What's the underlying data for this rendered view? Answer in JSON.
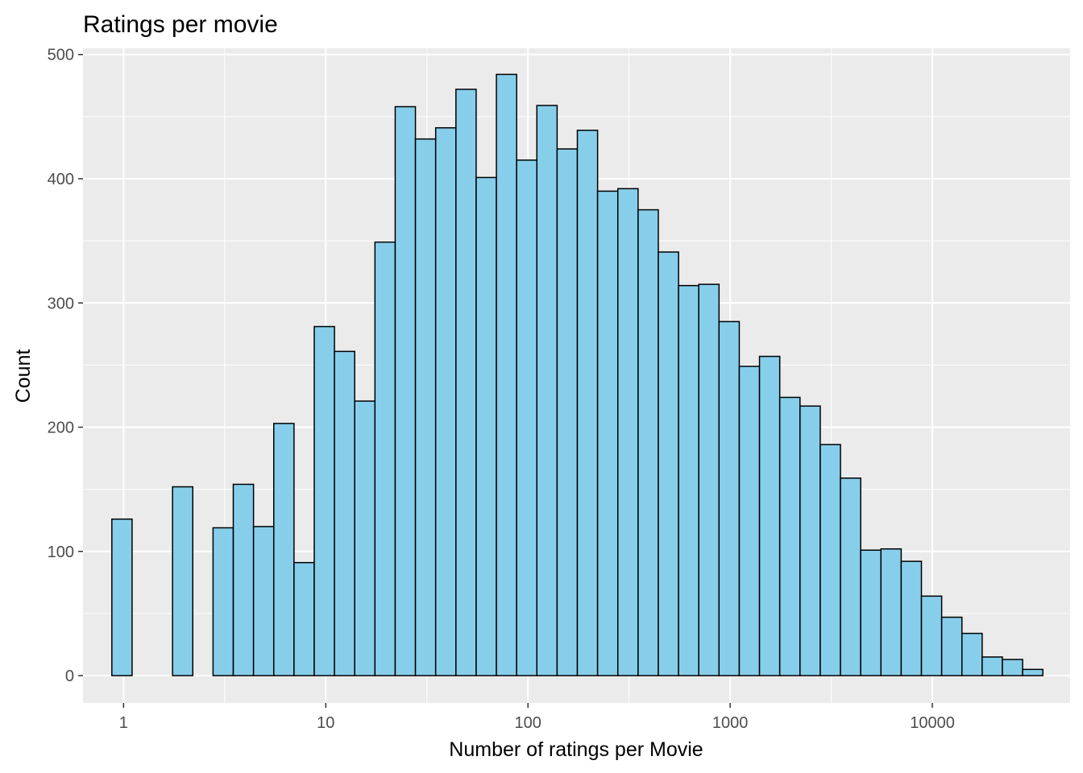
{
  "chart_data": {
    "type": "bar",
    "title": "Ratings per movie",
    "xlabel": "Number of ratings per Movie",
    "ylabel": "Count",
    "x_scale": "log10",
    "x_ticks": [
      1,
      10,
      100,
      1000,
      10000
    ],
    "x_tick_labels": [
      "1",
      "10",
      "100",
      "1000",
      "10000"
    ],
    "y_ticks": [
      0,
      100,
      200,
      300,
      400,
      500
    ],
    "y_tick_labels": [
      "0",
      "100",
      "200",
      "300",
      "400",
      "500"
    ],
    "ylim": [
      -22,
      505
    ],
    "xlim": [
      0.63,
      48000
    ],
    "bin_count": 46,
    "bin_range": [
      0.875,
      35200
    ],
    "values": [
      126,
      0,
      0,
      152,
      0,
      119,
      154,
      120,
      203,
      91,
      281,
      261,
      221,
      349,
      458,
      432,
      441,
      472,
      401,
      484,
      415,
      459,
      424,
      439,
      390,
      392,
      375,
      341,
      314,
      315,
      285,
      249,
      257,
      224,
      217,
      186,
      159,
      101,
      102,
      92,
      64,
      47,
      34,
      15,
      13,
      5
    ],
    "grid": true,
    "colors": {
      "bar_fill": "#87ceeb",
      "bar_outline": "#000000",
      "panel": "#ebebeb",
      "grid": "#ffffff"
    }
  }
}
